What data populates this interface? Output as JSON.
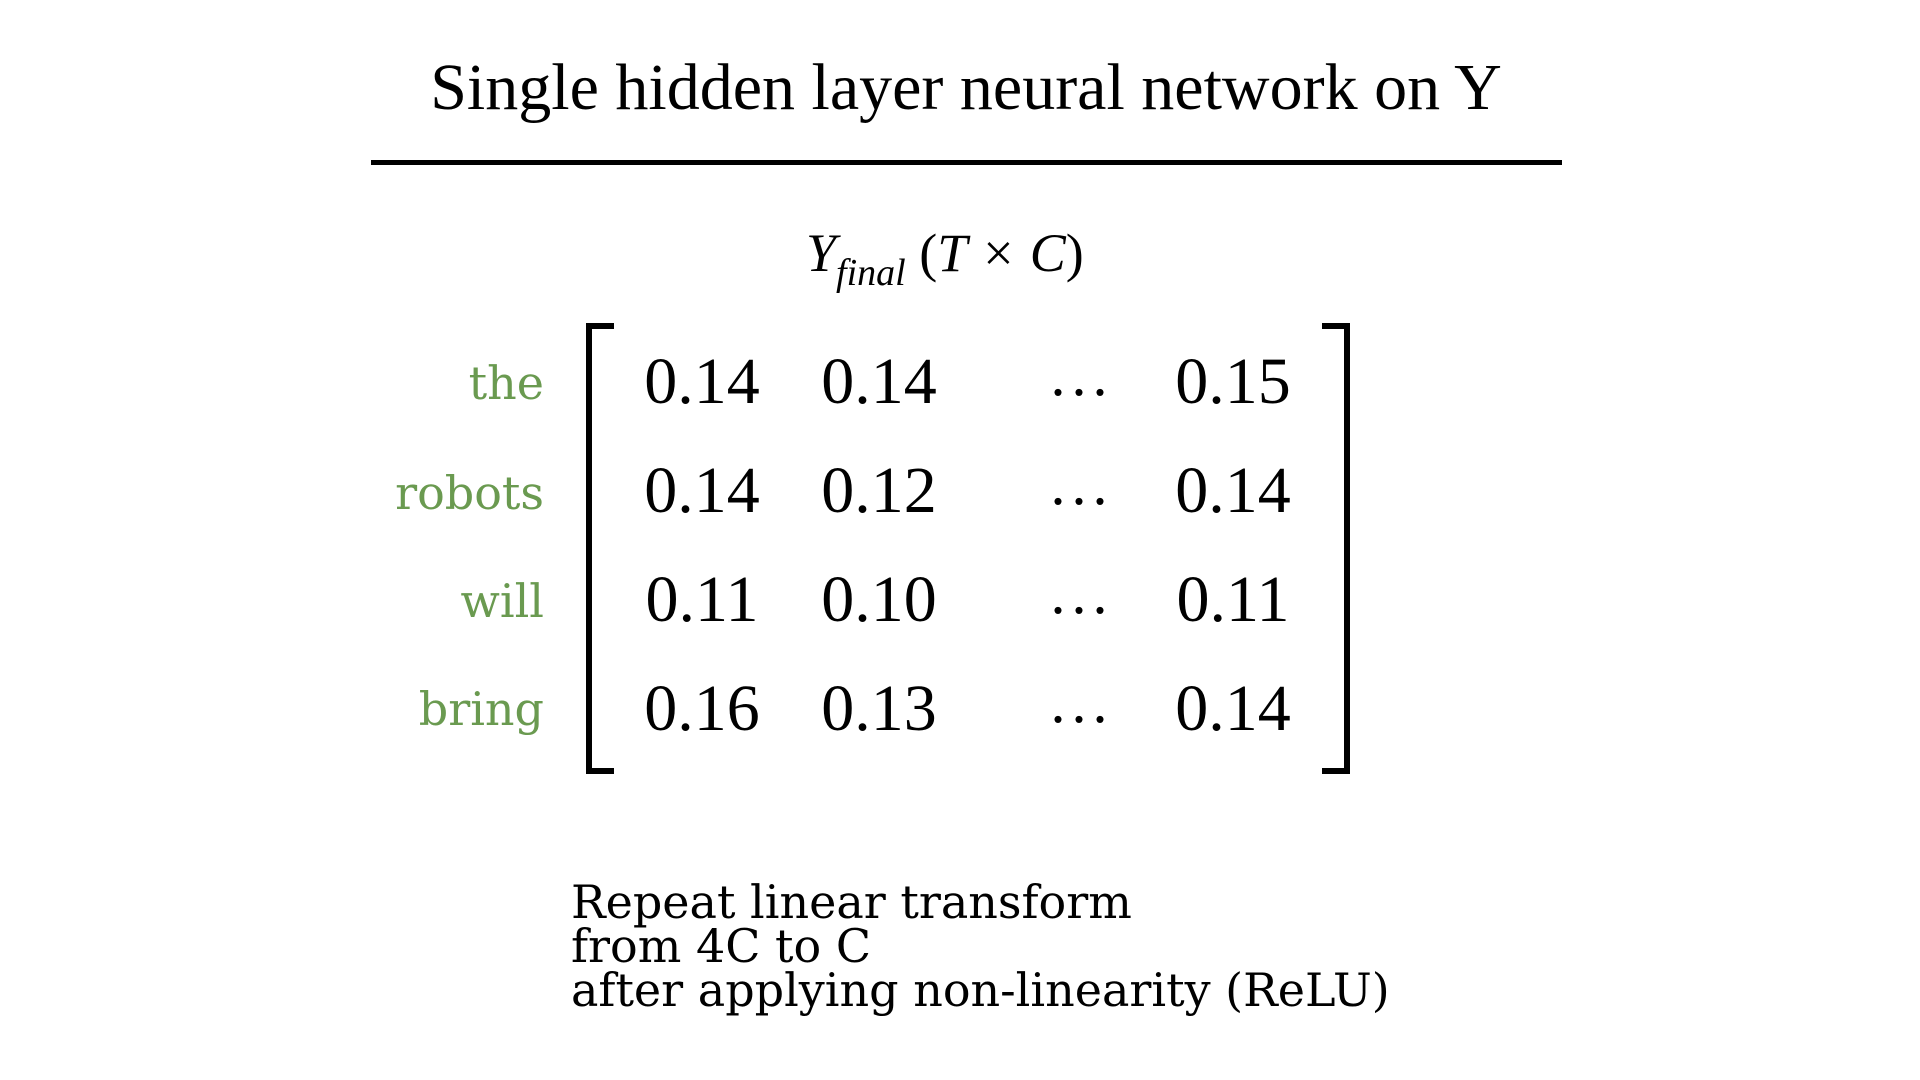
{
  "title": "Single hidden layer neural network on Y",
  "matrix": {
    "label_var": "Y",
    "label_sub": "final",
    "label_dims": "T × C",
    "row_labels": [
      "the",
      "robots",
      "will",
      "bring"
    ],
    "rows": [
      [
        "0.14",
        "0.14",
        "...",
        "0.15"
      ],
      [
        "0.14",
        "0.12",
        "...",
        "0.14"
      ],
      [
        "0.11",
        "0.10",
        "...",
        "0.11"
      ],
      [
        "0.16",
        "0.13",
        "...",
        "0.14"
      ]
    ]
  },
  "caption": [
    "Repeat linear transform",
    "from 4C to C",
    "after applying non-linearity (ReLU)"
  ],
  "colors": {
    "row_label": "#6a9a50",
    "text": "#000000",
    "background": "#ffffff"
  }
}
